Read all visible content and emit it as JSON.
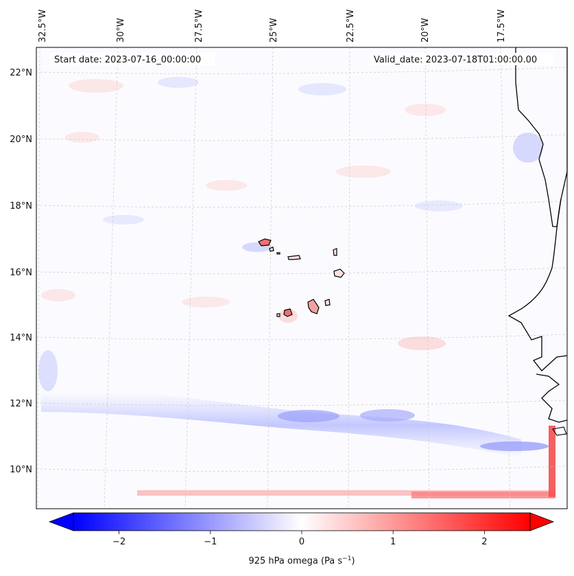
{
  "header": {
    "start_date": "Start date: 2023-07-16_00:00:00",
    "valid_date": "Valid_date: 2023-07-18T01:00:00.00"
  },
  "map": {
    "lon_labels": [
      "32.5°W",
      "30°W",
      "27.5°W",
      "25°W",
      "22.5°W",
      "20°W",
      "17.5°W"
    ],
    "lat_labels": [
      "22°N",
      "20°N",
      "18°N",
      "16°N",
      "14°N",
      "12°N",
      "10°N"
    ],
    "field": "925 hPa omega",
    "colors": {
      "negative": "#0000ff",
      "neutral": "#ffffff",
      "positive": "#ff0000",
      "coast": "#000000",
      "grid": "#bfbfbf"
    }
  },
  "colorbar": {
    "ticks": [
      "−2",
      "−1",
      "0",
      "1",
      "2"
    ],
    "tick_values": [
      -2,
      -1,
      0,
      1,
      2
    ],
    "range": [
      -2.5,
      2.5
    ],
    "label_main": "925 hPa omega (Pa s",
    "label_sup": "−1",
    "label_end": ")"
  }
}
